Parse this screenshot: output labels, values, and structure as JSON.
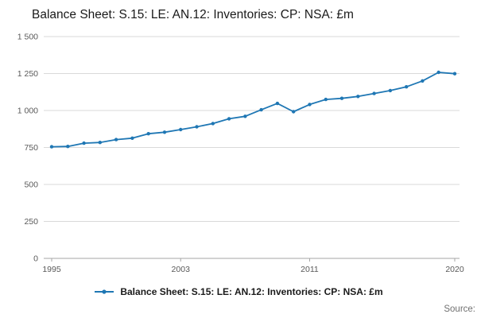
{
  "page": {
    "title": "Balance Sheet: S.15: LE: AN.12: Inventories: CP: NSA: £m",
    "source_label": "Source:"
  },
  "chart_data": {
    "type": "line",
    "title": "Balance Sheet: S.15: LE: AN.12: Inventories: CP: NSA: £m",
    "x": [
      1995,
      1996,
      1997,
      1998,
      1999,
      2000,
      2001,
      2002,
      2003,
      2004,
      2005,
      2006,
      2007,
      2008,
      2009,
      2010,
      2011,
      2012,
      2013,
      2014,
      2015,
      2016,
      2017,
      2018,
      2019,
      2020
    ],
    "series": [
      {
        "name": "Balance Sheet: S.15: LE: AN.12: Inventories: CP: NSA: £m",
        "values": [
          755,
          757,
          779,
          784,
          803,
          813,
          843,
          853,
          871,
          890,
          912,
          944,
          961,
          1005,
          1048,
          992,
          1041,
          1075,
          1082,
          1095,
          1115,
          1135,
          1160,
          1200,
          1258,
          1249
        ]
      }
    ],
    "xlabel": "",
    "ylabel": "",
    "ylim": [
      0,
      1500
    ],
    "yticks": [
      0,
      250,
      500,
      750,
      1000,
      1250,
      1500
    ],
    "ytick_labels": [
      "0",
      "250",
      "500",
      "750",
      "1 000",
      "1 250",
      "1 500"
    ],
    "xticks": [
      1995,
      2003,
      2011,
      2020
    ],
    "xtick_labels": [
      "1995",
      "2003",
      "2011",
      "2020"
    ],
    "color": "#1f77b4",
    "grid_color": "#d9d9d9",
    "axis_color": "#a6a6a6",
    "tick_text_color": "#595959",
    "grid": "horizontal",
    "legend_position": "bottom",
    "marker": "circle"
  }
}
